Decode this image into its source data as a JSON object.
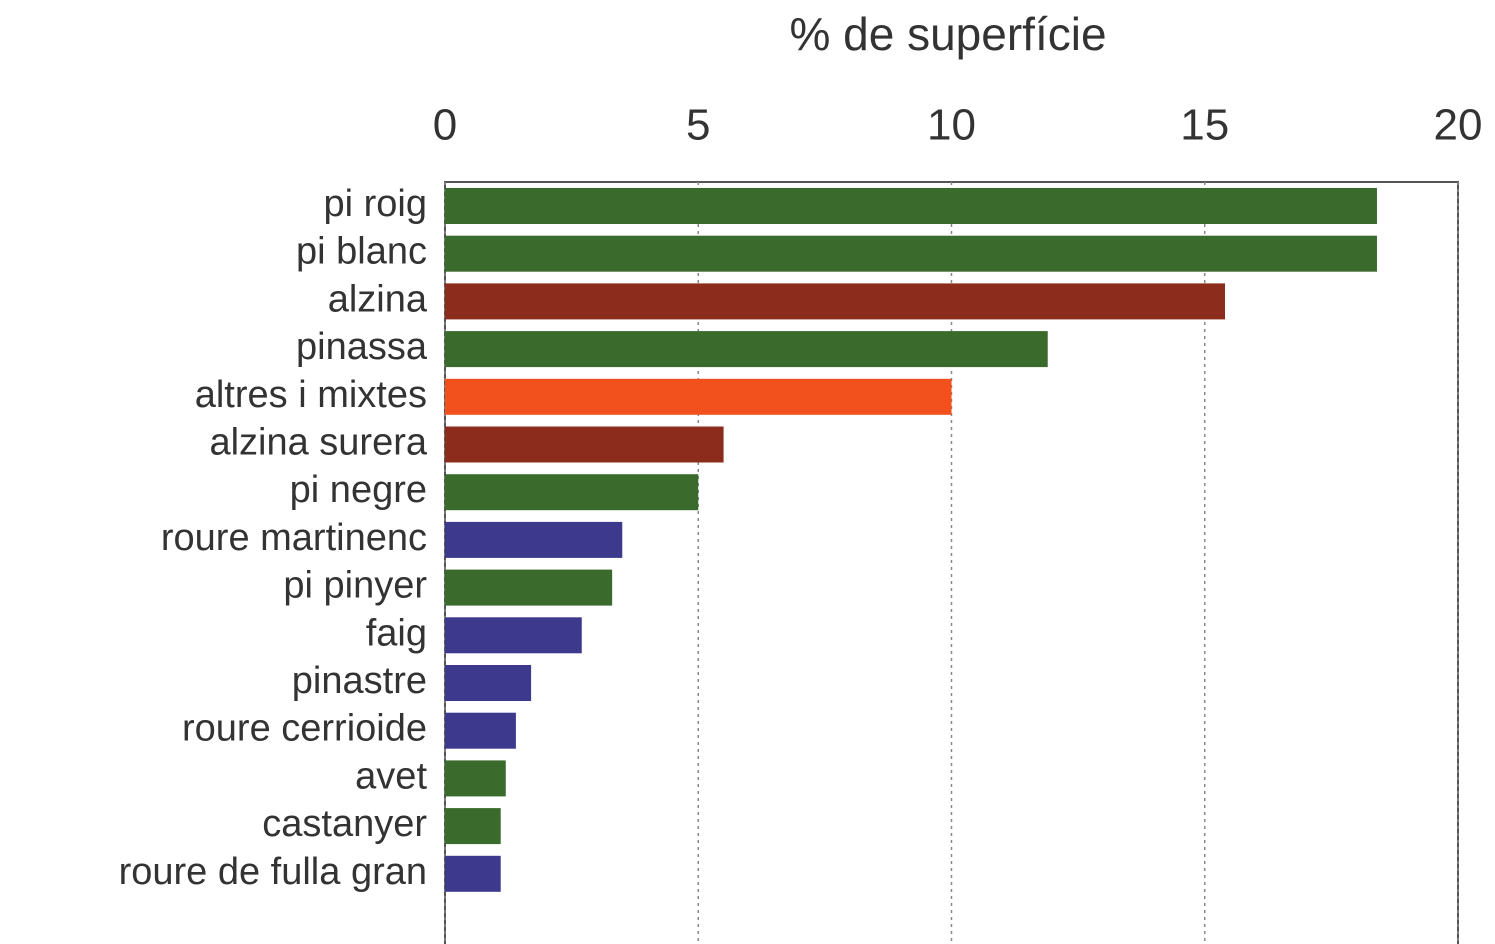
{
  "chart_data": {
    "type": "bar",
    "orientation": "horizontal",
    "title": "% de superfície",
    "categories": [
      "pi roig",
      "pi blanc",
      "alzina",
      "pinassa",
      "altres i mixtes",
      "alzina surera",
      "pi negre",
      "roure martinenc",
      "pi pinyer",
      "faig",
      "pinastre",
      "roure cerrioide",
      "avet",
      "castanyer",
      "roure de fulla gran"
    ],
    "values": [
      18.4,
      18.4,
      15.4,
      11.9,
      10.0,
      5.5,
      5.0,
      3.5,
      3.3,
      2.7,
      1.7,
      1.4,
      1.2,
      1.1,
      1.1
    ],
    "colors": [
      "#3b6b2c",
      "#3b6b2c",
      "#8c2c1c",
      "#3b6b2c",
      "#f2511e",
      "#8c2c1c",
      "#3b6b2c",
      "#3d3a8e",
      "#3b6b2c",
      "#3d3a8e",
      "#3d3a8e",
      "#3d3a8e",
      "#3b6b2c",
      "#3b6b2c",
      "#3d3a8e"
    ],
    "xlim": [
      0,
      20
    ],
    "xticks": [
      0,
      5,
      10,
      15,
      20
    ],
    "grid": true
  }
}
